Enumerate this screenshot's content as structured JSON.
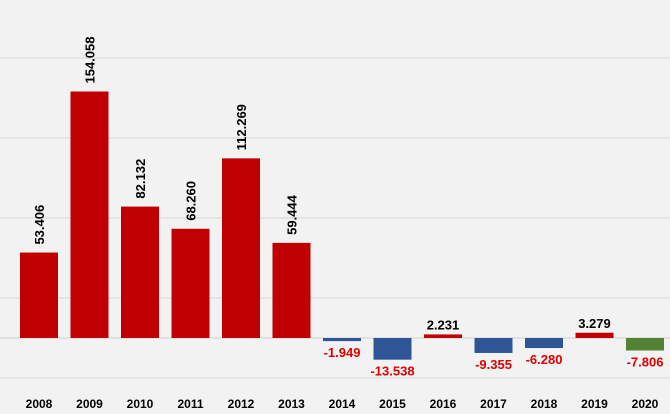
{
  "chart_data": {
    "type": "bar",
    "categories": [
      "2008",
      "2009",
      "2010",
      "2011",
      "2012",
      "2013",
      "2014",
      "2015",
      "2016",
      "2017",
      "2018",
      "2019",
      "2020"
    ],
    "values": [
      53.406,
      154.058,
      82.132,
      68.26,
      112.269,
      59.444,
      -1.949,
      -13.538,
      2.231,
      -9.355,
      -6.28,
      3.279,
      -7.806
    ],
    "labels": [
      "53.406",
      "154.058",
      "82.132",
      "68.260",
      "112.269",
      "59.444",
      "-1.949",
      "-13.538",
      "2.231",
      "-9.355",
      "-6.280",
      "3.279",
      "-7.806"
    ],
    "colors": [
      "#c00000",
      "#c00000",
      "#c00000",
      "#c00000",
      "#c00000",
      "#c00000",
      "#2f5597",
      "#2f5597",
      "#c00000",
      "#2f5597",
      "#2f5597",
      "#c00000",
      "#548235"
    ],
    "title": "",
    "xlabel": "",
    "ylabel": "",
    "ylim": [
      -25,
      165
    ],
    "grid": true,
    "legend": "none"
  }
}
